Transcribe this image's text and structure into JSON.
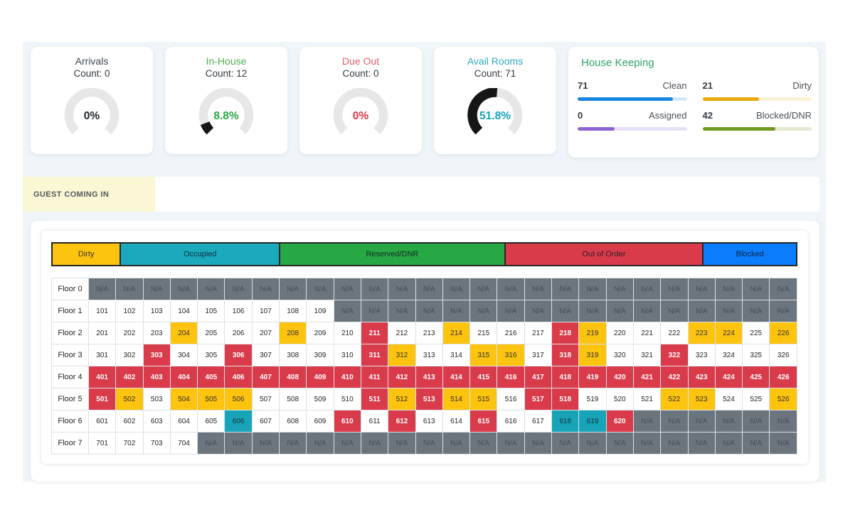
{
  "window": {
    "background": "#ffffff",
    "panel_background": "#eff5f8"
  },
  "stat_cards": [
    {
      "id": "arrivals",
      "title": "Arrivals",
      "count_label": "Count: 0",
      "percent": 0,
      "percent_label": "0%",
      "title_color": "#3d4852",
      "percent_color": "#212529"
    },
    {
      "id": "in-house",
      "title": "In-House",
      "count_label": "Count: 12",
      "percent": 8.8,
      "percent_label": "8.8%",
      "title_color": "#4caf50",
      "percent_color": "#28a745"
    },
    {
      "id": "due-out",
      "title": "Due Out",
      "count_label": "Count: 0",
      "percent": 0,
      "percent_label": "0%",
      "title_color": "#e4606d",
      "percent_color": "#dc3545"
    },
    {
      "id": "avail-rooms",
      "title": "Avail Rooms",
      "count_label": "Count: 71",
      "percent": 51.8,
      "percent_label": "51.8%",
      "title_color": "#2fa7c0",
      "percent_color": "#17a2b8"
    }
  ],
  "gauge": {
    "track_color": "#e7e7e7",
    "value_color": "#161616",
    "start_angle": 225,
    "sweep": 270
  },
  "housekeeping": {
    "title": "House Keeping",
    "title_color": "#2fa566",
    "items": [
      {
        "value": "71",
        "label": "Clean",
        "fill": "#1786e0",
        "track": "#d3e9fb",
        "pct": 87
      },
      {
        "value": "21",
        "label": "Dirty",
        "fill": "#e8a90c",
        "track": "#faf0d2",
        "pct": 52
      },
      {
        "value": "0",
        "label": "Assigned",
        "fill": "#8f63d2",
        "track": "#e8e0f7",
        "pct": 34
      },
      {
        "value": "42",
        "label": "Blocked/DNR",
        "fill": "#6f9b20",
        "track": "#e3e9d0",
        "pct": 67
      }
    ]
  },
  "tab": {
    "label": "GUEST COMING IN",
    "background": "#fbf7d5"
  },
  "legend": [
    {
      "label": "Dirty",
      "color": "#fcc30f",
      "weight": 9.1
    },
    {
      "label": "Occupied",
      "color": "#1ba9be",
      "weight": 21.4
    },
    {
      "label": "Reserved/DNR",
      "color": "#28a745",
      "weight": 30.3
    },
    {
      "label": "Out of Order",
      "color": "#da3b4b",
      "weight": 26.7
    },
    {
      "label": "Blocked",
      "color": "#0b7dfa",
      "weight": 12.5
    }
  ],
  "grid": {
    "statuses": {
      "w": {
        "bg": "#ffffff",
        "fg": "#212529",
        "bold": false
      },
      "na": {
        "bg": "#6b757e",
        "fg": "#454d54",
        "bold": false
      },
      "d": {
        "bg": "#fcc30f",
        "fg": "#33302b",
        "bold": false
      },
      "o": {
        "bg": "#17a3b8",
        "fg": "#14333a",
        "bold": false
      },
      "r": {
        "bg": "#da3b4b",
        "fg": "#ffffff",
        "bold": true
      }
    },
    "rows": [
      {
        "label": "Floor 0",
        "cells": [
          [
            "N/A",
            "na"
          ],
          [
            "N/A",
            "na"
          ],
          [
            "N/A",
            "na"
          ],
          [
            "N/A",
            "na"
          ],
          [
            "N/A",
            "na"
          ],
          [
            "N/A",
            "na"
          ],
          [
            "N/A",
            "na"
          ],
          [
            "N/A",
            "na"
          ],
          [
            "N/A",
            "na"
          ],
          [
            "N/A",
            "na"
          ],
          [
            "N/A",
            "na"
          ],
          [
            "N/A",
            "na"
          ],
          [
            "N/A",
            "na"
          ],
          [
            "N/A",
            "na"
          ],
          [
            "N/A",
            "na"
          ],
          [
            "N/A",
            "na"
          ],
          [
            "N/A",
            "na"
          ],
          [
            "N/A",
            "na"
          ],
          [
            "N/A",
            "na"
          ],
          [
            "N/A",
            "na"
          ],
          [
            "N/A",
            "na"
          ],
          [
            "N/A",
            "na"
          ],
          [
            "N/A",
            "na"
          ],
          [
            "N/A",
            "na"
          ],
          [
            "N/A",
            "na"
          ],
          [
            "N/A",
            "na"
          ]
        ]
      },
      {
        "label": "Floor 1",
        "cells": [
          [
            "101",
            "w"
          ],
          [
            "102",
            "w"
          ],
          [
            "103",
            "w"
          ],
          [
            "104",
            "w"
          ],
          [
            "105",
            "w"
          ],
          [
            "106",
            "w"
          ],
          [
            "107",
            "w"
          ],
          [
            "108",
            "w"
          ],
          [
            "109",
            "w"
          ],
          [
            "N/A",
            "na"
          ],
          [
            "N/A",
            "na"
          ],
          [
            "N/A",
            "na"
          ],
          [
            "N/A",
            "na"
          ],
          [
            "N/A",
            "na"
          ],
          [
            "N/A",
            "na"
          ],
          [
            "N/A",
            "na"
          ],
          [
            "N/A",
            "na"
          ],
          [
            "N/A",
            "na"
          ],
          [
            "N/A",
            "na"
          ],
          [
            "N/A",
            "na"
          ],
          [
            "N/A",
            "na"
          ],
          [
            "N/A",
            "na"
          ],
          [
            "N/A",
            "na"
          ],
          [
            "N/A",
            "na"
          ],
          [
            "N/A",
            "na"
          ],
          [
            "N/A",
            "na"
          ]
        ]
      },
      {
        "label": "Floor 2",
        "cells": [
          [
            "201",
            "w"
          ],
          [
            "202",
            "w"
          ],
          [
            "203",
            "w"
          ],
          [
            "204",
            "d"
          ],
          [
            "205",
            "w"
          ],
          [
            "206",
            "w"
          ],
          [
            "207",
            "w"
          ],
          [
            "208",
            "d"
          ],
          [
            "209",
            "w"
          ],
          [
            "210",
            "w"
          ],
          [
            "211",
            "r"
          ],
          [
            "212",
            "w"
          ],
          [
            "213",
            "w"
          ],
          [
            "214",
            "d"
          ],
          [
            "215",
            "w"
          ],
          [
            "216",
            "w"
          ],
          [
            "217",
            "w"
          ],
          [
            "218",
            "r"
          ],
          [
            "219",
            "d"
          ],
          [
            "220",
            "w"
          ],
          [
            "221",
            "w"
          ],
          [
            "222",
            "w"
          ],
          [
            "223",
            "d"
          ],
          [
            "224",
            "d"
          ],
          [
            "225",
            "w"
          ],
          [
            "226",
            "d"
          ]
        ]
      },
      {
        "label": "Floor 3",
        "cells": [
          [
            "301",
            "w"
          ],
          [
            "302",
            "w"
          ],
          [
            "303",
            "r"
          ],
          [
            "304",
            "w"
          ],
          [
            "305",
            "w"
          ],
          [
            "306",
            "r"
          ],
          [
            "307",
            "w"
          ],
          [
            "308",
            "w"
          ],
          [
            "309",
            "w"
          ],
          [
            "310",
            "w"
          ],
          [
            "311",
            "r"
          ],
          [
            "312",
            "d"
          ],
          [
            "313",
            "w"
          ],
          [
            "314",
            "w"
          ],
          [
            "315",
            "d"
          ],
          [
            "316",
            "d"
          ],
          [
            "317",
            "w"
          ],
          [
            "318",
            "r"
          ],
          [
            "319",
            "d"
          ],
          [
            "320",
            "w"
          ],
          [
            "321",
            "w"
          ],
          [
            "322",
            "r"
          ],
          [
            "323",
            "w"
          ],
          [
            "324",
            "w"
          ],
          [
            "325",
            "w"
          ],
          [
            "326",
            "w"
          ]
        ]
      },
      {
        "label": "Floor 4",
        "cells": [
          [
            "401",
            "r"
          ],
          [
            "402",
            "r"
          ],
          [
            "403",
            "r"
          ],
          [
            "404",
            "r"
          ],
          [
            "405",
            "r"
          ],
          [
            "406",
            "r"
          ],
          [
            "407",
            "r"
          ],
          [
            "408",
            "r"
          ],
          [
            "409",
            "r"
          ],
          [
            "410",
            "r"
          ],
          [
            "411",
            "r"
          ],
          [
            "412",
            "r"
          ],
          [
            "413",
            "r"
          ],
          [
            "414",
            "r"
          ],
          [
            "415",
            "r"
          ],
          [
            "416",
            "r"
          ],
          [
            "417",
            "r"
          ],
          [
            "418",
            "r"
          ],
          [
            "419",
            "r"
          ],
          [
            "420",
            "r"
          ],
          [
            "421",
            "r"
          ],
          [
            "422",
            "r"
          ],
          [
            "423",
            "r"
          ],
          [
            "424",
            "r"
          ],
          [
            "425",
            "r"
          ],
          [
            "426",
            "r"
          ]
        ]
      },
      {
        "label": "Floor 5",
        "cells": [
          [
            "501",
            "r"
          ],
          [
            "502",
            "d"
          ],
          [
            "503",
            "w"
          ],
          [
            "504",
            "d"
          ],
          [
            "505",
            "d"
          ],
          [
            "506",
            "d"
          ],
          [
            "507",
            "w"
          ],
          [
            "508",
            "w"
          ],
          [
            "509",
            "w"
          ],
          [
            "510",
            "w"
          ],
          [
            "511",
            "r"
          ],
          [
            "512",
            "d"
          ],
          [
            "513",
            "r"
          ],
          [
            "514",
            "d"
          ],
          [
            "515",
            "d"
          ],
          [
            "516",
            "w"
          ],
          [
            "517",
            "r"
          ],
          [
            "518",
            "r"
          ],
          [
            "519",
            "w"
          ],
          [
            "520",
            "w"
          ],
          [
            "521",
            "w"
          ],
          [
            "522",
            "d"
          ],
          [
            "523",
            "d"
          ],
          [
            "524",
            "w"
          ],
          [
            "525",
            "w"
          ],
          [
            "526",
            "d"
          ]
        ]
      },
      {
        "label": "Floor 6",
        "cells": [
          [
            "601",
            "w"
          ],
          [
            "602",
            "w"
          ],
          [
            "603",
            "w"
          ],
          [
            "604",
            "w"
          ],
          [
            "605",
            "w"
          ],
          [
            "606",
            "o"
          ],
          [
            "607",
            "w"
          ],
          [
            "608",
            "w"
          ],
          [
            "609",
            "w"
          ],
          [
            "610",
            "r"
          ],
          [
            "611",
            "w"
          ],
          [
            "612",
            "r"
          ],
          [
            "613",
            "w"
          ],
          [
            "614",
            "w"
          ],
          [
            "615",
            "r"
          ],
          [
            "616",
            "w"
          ],
          [
            "617",
            "w"
          ],
          [
            "618",
            "o"
          ],
          [
            "619",
            "o"
          ],
          [
            "620",
            "r"
          ],
          [
            "N/A",
            "na"
          ],
          [
            "N/A",
            "na"
          ],
          [
            "N/A",
            "na"
          ],
          [
            "N/A",
            "na"
          ],
          [
            "N/A",
            "na"
          ],
          [
            "N/A",
            "na"
          ]
        ]
      },
      {
        "label": "Floor 7",
        "cells": [
          [
            "701",
            "w"
          ],
          [
            "702",
            "w"
          ],
          [
            "703",
            "w"
          ],
          [
            "704",
            "w"
          ],
          [
            "N/A",
            "na"
          ],
          [
            "N/A",
            "na"
          ],
          [
            "N/A",
            "na"
          ],
          [
            "N/A",
            "na"
          ],
          [
            "N/A",
            "na"
          ],
          [
            "N/A",
            "na"
          ],
          [
            "N/A",
            "na"
          ],
          [
            "N/A",
            "na"
          ],
          [
            "N/A",
            "na"
          ],
          [
            "N/A",
            "na"
          ],
          [
            "N/A",
            "na"
          ],
          [
            "N/A",
            "na"
          ],
          [
            "N/A",
            "na"
          ],
          [
            "N/A",
            "na"
          ],
          [
            "N/A",
            "na"
          ],
          [
            "N/A",
            "na"
          ],
          [
            "N/A",
            "na"
          ],
          [
            "N/A",
            "na"
          ],
          [
            "N/A",
            "na"
          ],
          [
            "N/A",
            "na"
          ],
          [
            "N/A",
            "na"
          ],
          [
            "N/A",
            "na"
          ]
        ]
      }
    ]
  }
}
